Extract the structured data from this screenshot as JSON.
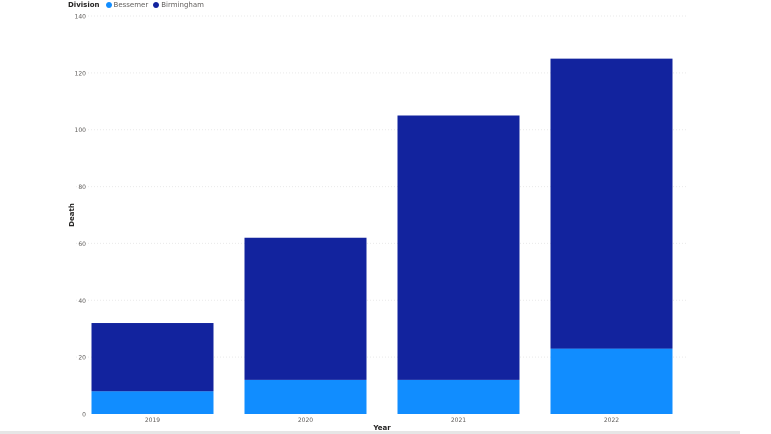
{
  "chart_data": {
    "type": "bar",
    "stacked": true,
    "categories": [
      "2019",
      "2020",
      "2021",
      "2022"
    ],
    "series": [
      {
        "name": "Bessemer",
        "values": [
          8,
          12,
          12,
          23
        ],
        "color": "#118DFF"
      },
      {
        "name": "Birmingham",
        "values": [
          24,
          50,
          93,
          102
        ],
        "color": "#12239E"
      }
    ],
    "legend_title": "Division",
    "legend_position": "top-left",
    "xlabel": "Year",
    "ylabel": "Death",
    "ylim": [
      0,
      140
    ],
    "yticks": [
      "0",
      "20",
      "40",
      "60",
      "80",
      "100",
      "120",
      "140"
    ],
    "grid": true
  }
}
